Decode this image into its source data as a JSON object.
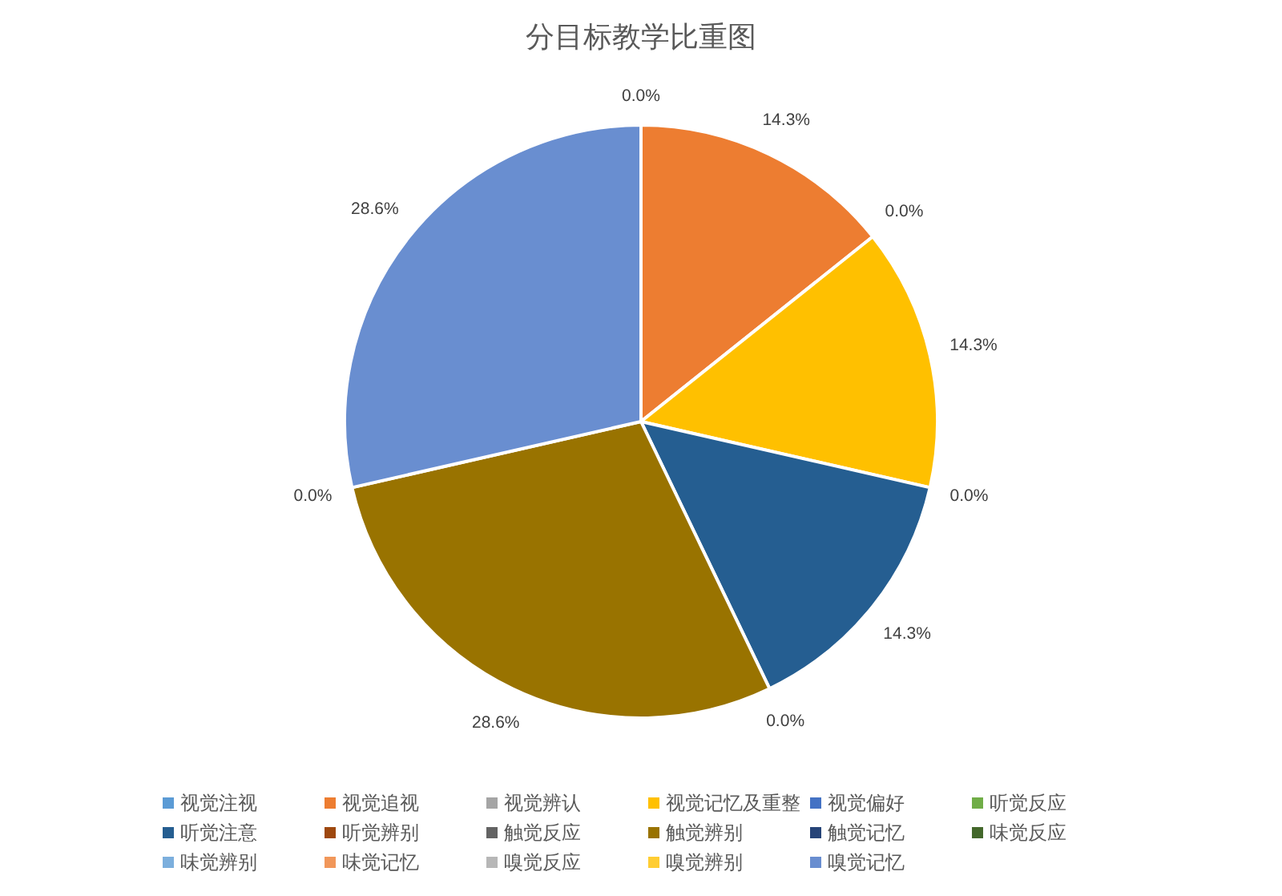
{
  "chart_data": {
    "type": "pie",
    "title": "分目标教学比重图",
    "categories": [
      "视觉注视",
      "视觉追视",
      "视觉辨认",
      "视觉记忆及重整",
      "视觉偏好",
      "听觉反应",
      "听觉注意",
      "听觉辨别",
      "触觉反应",
      "触觉辨别",
      "触觉记忆",
      "味觉反应",
      "味觉辨别",
      "味觉记忆",
      "嗅觉反应",
      "嗅觉辨别",
      "嗅觉记忆"
    ],
    "values": [
      0,
      14.3,
      0,
      14.3,
      0,
      0,
      14.3,
      0,
      0,
      28.6,
      0,
      0,
      0,
      0,
      0,
      0,
      28.6
    ],
    "colors": [
      "#5b9bd5",
      "#ed7d31",
      "#a5a5a5",
      "#ffc000",
      "#4472c4",
      "#70ad47",
      "#255e91",
      "#9e480e",
      "#636363",
      "#997300",
      "#264478",
      "#43682b",
      "#7cafdd",
      "#f1975a",
      "#b7b7b7",
      "#ffcd33",
      "#698ed0"
    ],
    "value_labels": [
      "0.0%",
      "14.3%",
      "0.0%",
      "14.3%",
      "0.0%",
      null,
      "14.3%",
      "0.0%",
      null,
      "28.6%",
      "0.0%",
      null,
      null,
      null,
      null,
      null,
      "28.6%"
    ],
    "legend": "bottom"
  }
}
